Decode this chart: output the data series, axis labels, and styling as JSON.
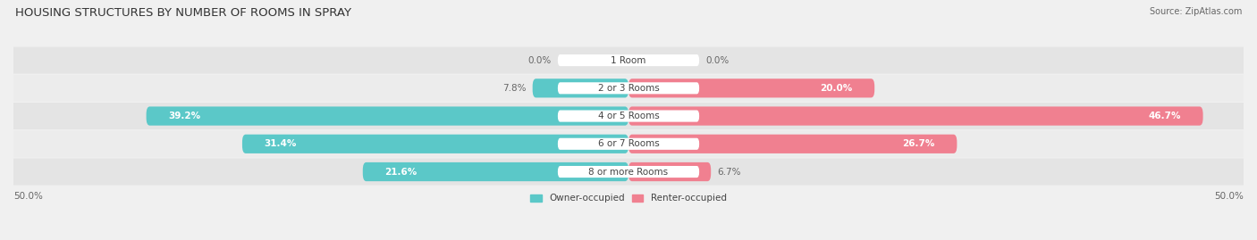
{
  "title": "HOUSING STRUCTURES BY NUMBER OF ROOMS IN SPRAY",
  "source": "Source: ZipAtlas.com",
  "categories": [
    "1 Room",
    "2 or 3 Rooms",
    "4 or 5 Rooms",
    "6 or 7 Rooms",
    "8 or more Rooms"
  ],
  "owner_values": [
    0.0,
    7.8,
    39.2,
    31.4,
    21.6
  ],
  "renter_values": [
    0.0,
    20.0,
    46.7,
    26.7,
    6.7
  ],
  "owner_color": "#5bc8c8",
  "renter_color": "#f08090",
  "bg_color": "#f0f0f0",
  "bar_bg_color_odd": "#e8e8e8",
  "bar_bg_color_even": "#dcdcdc",
  "axis_limit": 50.0,
  "legend_owner": "Owner-occupied",
  "legend_renter": "Renter-occupied",
  "title_fontsize": 9.5,
  "label_fontsize": 7.5,
  "value_fontsize": 7.5,
  "axis_tick_fontsize": 7.5,
  "source_fontsize": 7
}
